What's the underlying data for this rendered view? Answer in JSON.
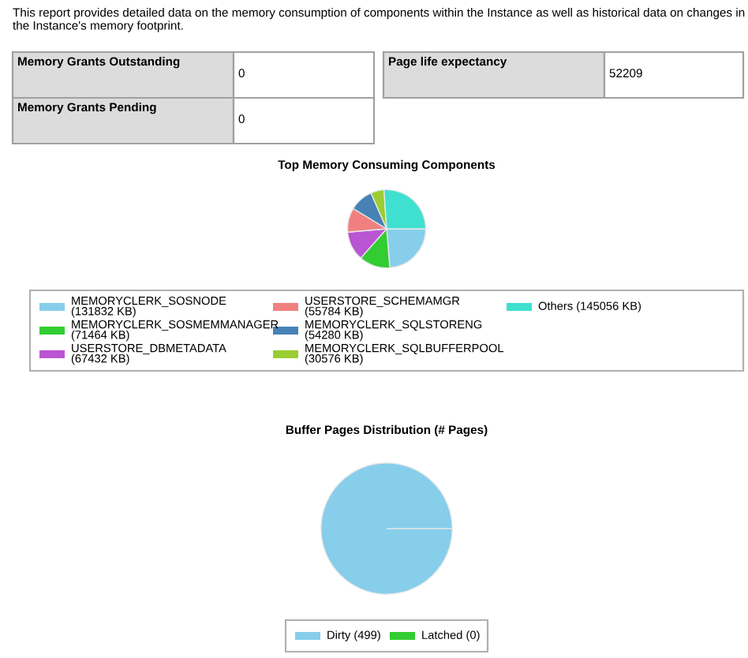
{
  "chart_data": [
    {
      "type": "other",
      "annotations": [
        "This report provides detailed data on the memory consumption of components within the Instance as well as historical data on changes in the Instance's memory footprint.",
        "Memory Grants Outstanding",
        "0",
        "Memory Grants Pending",
        "0",
        "Page life expectancy",
        "52209"
      ]
    },
    {
      "type": "pie",
      "title": "Top Memory Consuming Components",
      "legend": "bottom",
      "categories": [
        "MEMORYCLERK_SOSNODE (131832 KB)",
        "MEMORYCLERK_SOSMEMMANAGER (71464 KB)",
        "USERSTORE_DBMETADATA (67432 KB)",
        "USERSTORE_SCHEMAMGR (55784 KB)",
        "MEMORYCLERK_SQLSTORENG (54280 KB)",
        "MEMORYCLERK_SQLBUFFERPOOL (30576 KB)",
        "Others (145056 KB)"
      ],
      "values": [
        131832,
        71464,
        67432,
        55784,
        54280,
        30576,
        145056
      ],
      "colors": [
        "#87ceeb",
        "#32cd32",
        "#ba55d3",
        "#f08080",
        "#4682b4",
        "#9acd32",
        "#40e0d0"
      ]
    },
    {
      "type": "pie",
      "title": "Buffer Pages Distribution (# Pages)",
      "legend": "bottom",
      "categories": [
        "Dirty (499)",
        "Latched (0)"
      ],
      "values": [
        499,
        0
      ],
      "colors": [
        "#87ceeb",
        "#32cd32"
      ]
    }
  ]
}
